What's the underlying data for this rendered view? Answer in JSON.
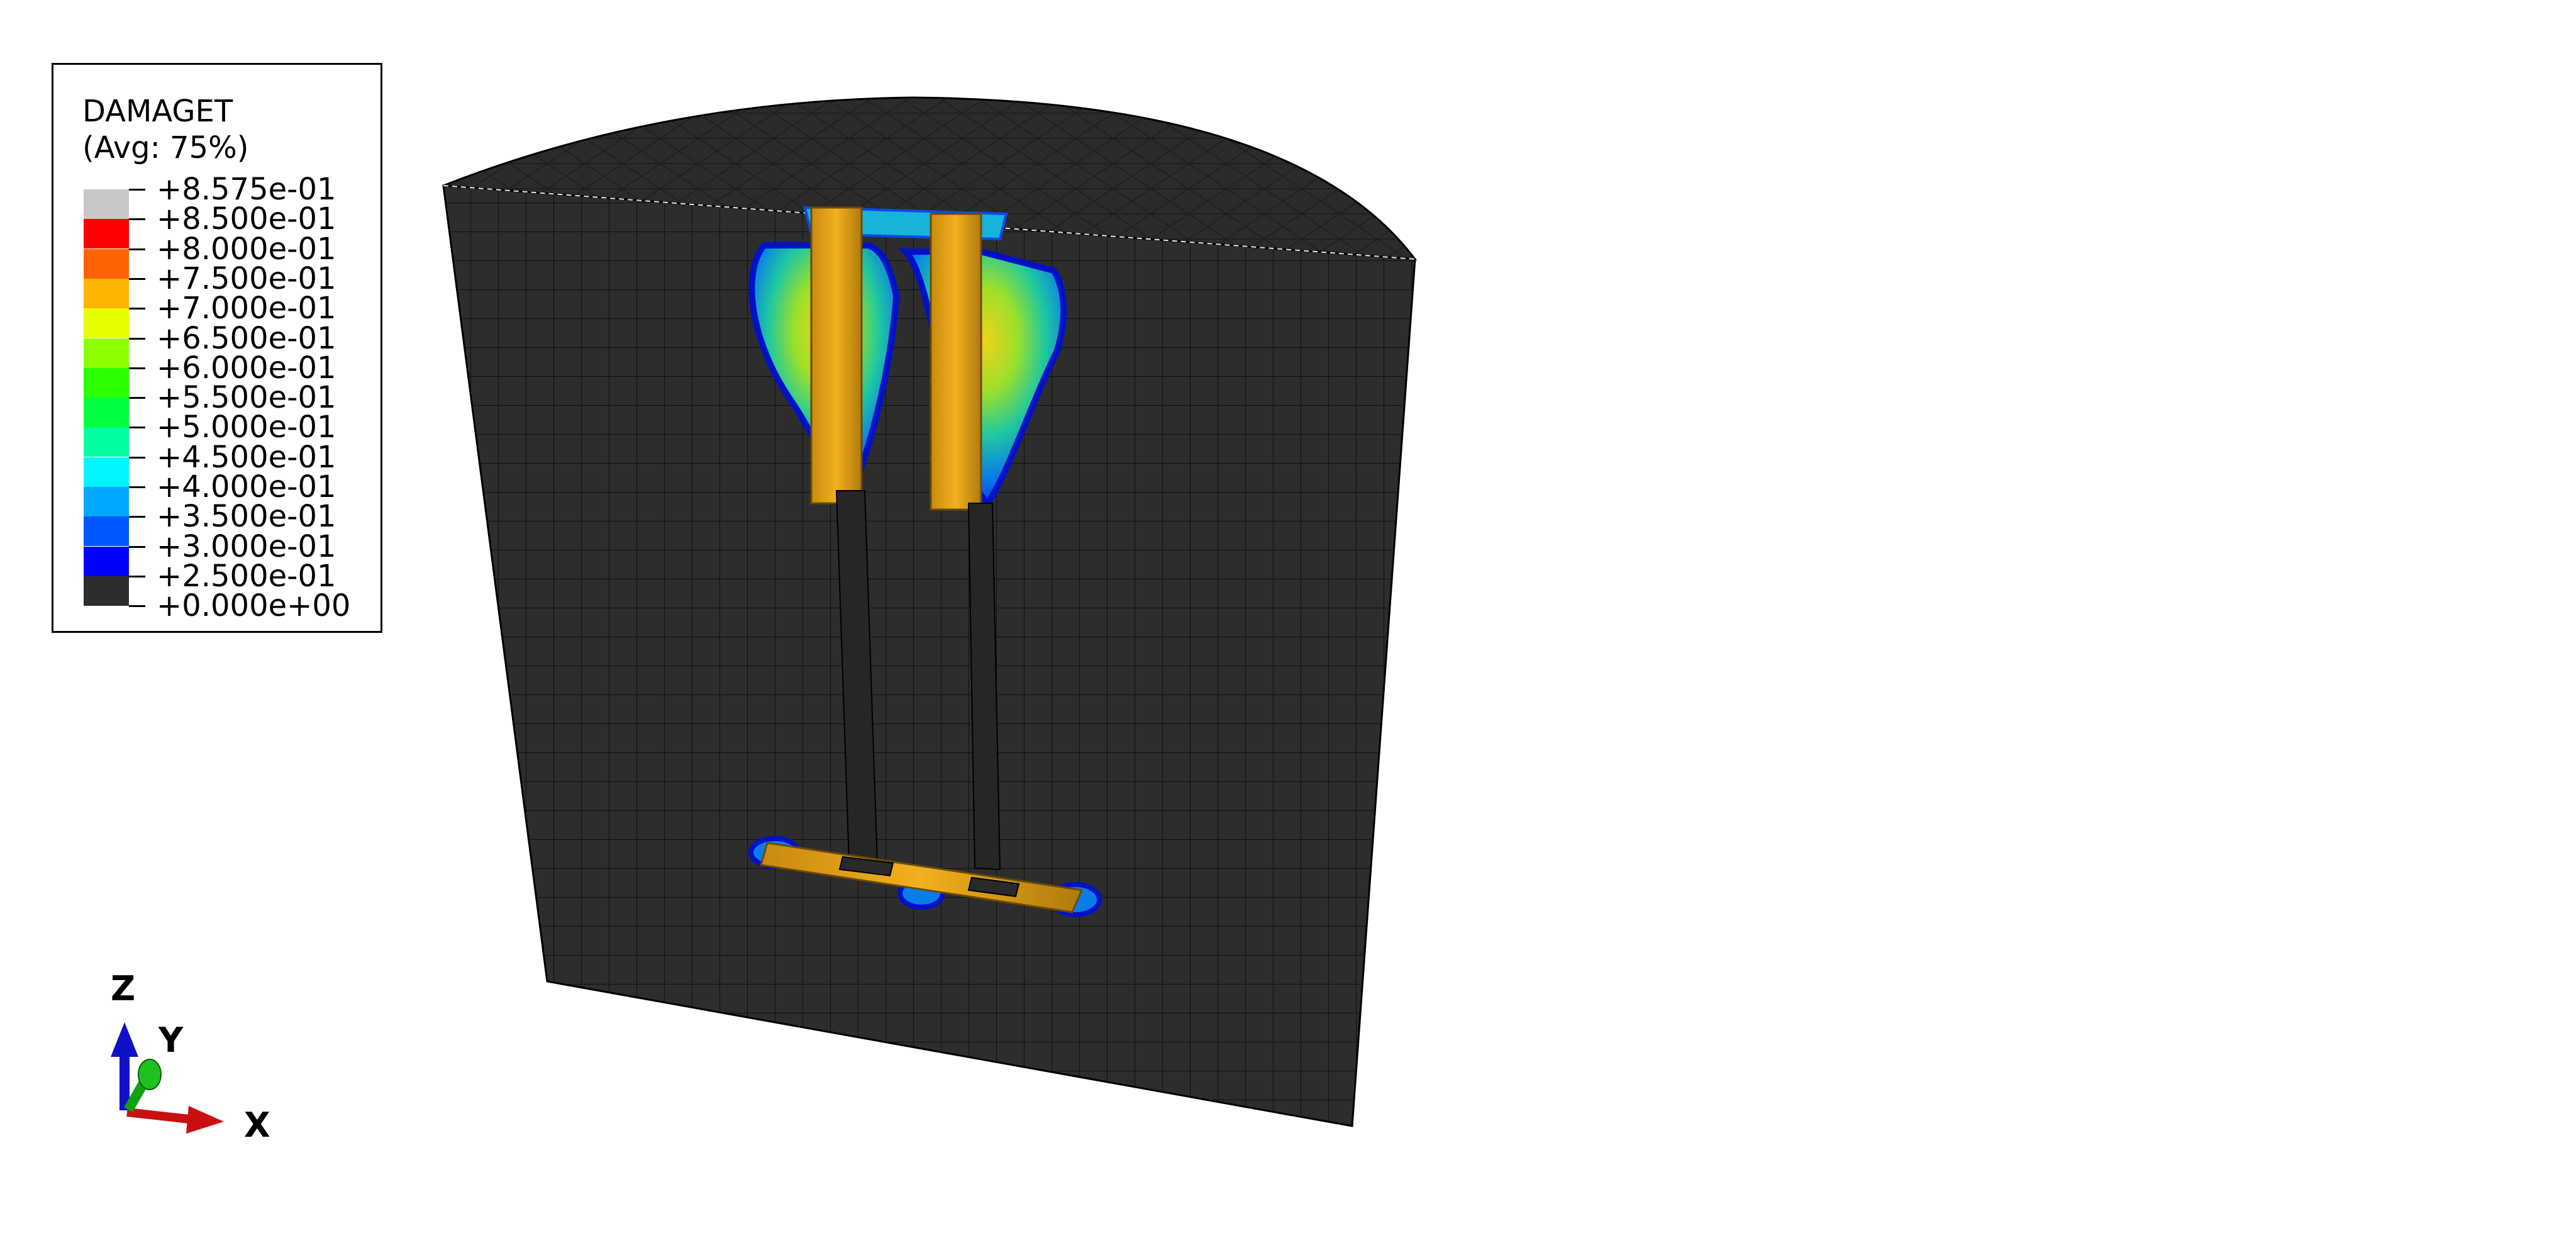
{
  "legend": {
    "title": "DAMAGET",
    "subtitle": "(Avg: 75%)",
    "levels": [
      {
        "label": "+8.575e-01",
        "color": "#c8c8c8"
      },
      {
        "label": "+8.500e-01",
        "color": "#ff0000"
      },
      {
        "label": "+8.000e-01",
        "color": "#ff6200"
      },
      {
        "label": "+7.500e-01",
        "color": "#ffb400"
      },
      {
        "label": "+7.000e-01",
        "color": "#e6ff00"
      },
      {
        "label": "+6.500e-01",
        "color": "#8cff00"
      },
      {
        "label": "+6.000e-01",
        "color": "#2cff00"
      },
      {
        "label": "+5.500e-01",
        "color": "#00ff3c"
      },
      {
        "label": "+5.000e-01",
        "color": "#00ffa0"
      },
      {
        "label": "+4.500e-01",
        "color": "#00f5ff"
      },
      {
        "label": "+4.000e-01",
        "color": "#00a8ff"
      },
      {
        "label": "+3.500e-01",
        "color": "#0058ff"
      },
      {
        "label": "+3.000e-01",
        "color": "#0000ff"
      },
      {
        "label": "+2.500e-01",
        "color": "#2d2d2d"
      },
      {
        "label": "+0.000e+00",
        "color": ""
      }
    ]
  },
  "triad": {
    "z": "Z",
    "y": "Y",
    "x": "X"
  }
}
